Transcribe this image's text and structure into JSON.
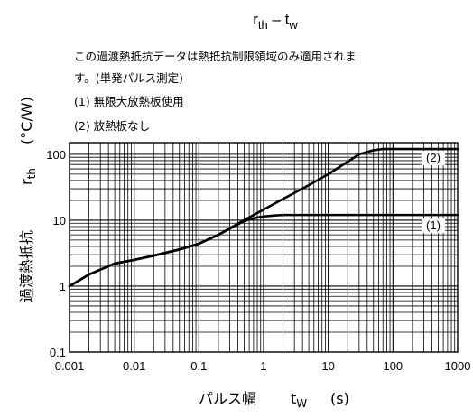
{
  "chart_data": {
    "type": "line",
    "title": {
      "main": "r",
      "main_sub": "th",
      "sep": " – ",
      "var": "t",
      "var_sub": "w"
    },
    "xlabel": {
      "text": "パルス幅",
      "var": "t",
      "var_sub": "W",
      "unit": "(s)"
    },
    "ylabel": {
      "text": "過渡熱抵抗",
      "var": "r",
      "var_sub": "th",
      "unit": "(°C/W)"
    },
    "x_scale": "log",
    "y_scale": "log",
    "xlim": [
      0.001,
      1000
    ],
    "ylim": [
      0.1,
      150
    ],
    "x_ticks": [
      {
        "value": 0.001,
        "label": "0.001"
      },
      {
        "value": 0.01,
        "label": "0.01"
      },
      {
        "value": 0.1,
        "label": "0.1"
      },
      {
        "value": 1,
        "label": "1"
      },
      {
        "value": 10,
        "label": "10"
      },
      {
        "value": 100,
        "label": "100"
      },
      {
        "value": 1000,
        "label": "1000"
      }
    ],
    "y_ticks": [
      {
        "value": 0.1,
        "label": "0.1"
      },
      {
        "value": 1,
        "label": "1"
      },
      {
        "value": 10,
        "label": "10"
      },
      {
        "value": 100,
        "label": "100"
      }
    ],
    "grid": true,
    "annotations": [
      "この過渡熱抵抗データは熱抵抗制限領域のみ適用されま",
      "す。(単発パルス測定)",
      "(1)  無限大放熱板使用",
      "(2)  放熱板なし"
    ],
    "series": [
      {
        "label": "(2)",
        "x": [
          0.001,
          0.002,
          0.005,
          0.01,
          0.02,
          0.05,
          0.1,
          0.2,
          0.5,
          1,
          2,
          5,
          10,
          20,
          30,
          50,
          70,
          100,
          200,
          500,
          1000
        ],
        "y": [
          1.0,
          1.5,
          2.2,
          2.5,
          2.9,
          3.6,
          4.4,
          6.0,
          10.0,
          14.5,
          21.0,
          34.0,
          50.0,
          77.0,
          100.0,
          115.0,
          120.0,
          120.0,
          120.0,
          120.0,
          120.0
        ]
      },
      {
        "label": "(1)",
        "x": [
          0.001,
          0.002,
          0.005,
          0.01,
          0.02,
          0.05,
          0.1,
          0.2,
          0.5,
          0.8,
          1,
          1.5,
          2,
          3,
          5,
          10,
          100,
          1000
        ],
        "y": [
          1.0,
          1.5,
          2.2,
          2.5,
          2.9,
          3.6,
          4.4,
          6.0,
          9.7,
          11.0,
          11.4,
          11.8,
          12.0,
          12.0,
          12.0,
          12.0,
          12.0,
          12.0
        ]
      }
    ]
  }
}
